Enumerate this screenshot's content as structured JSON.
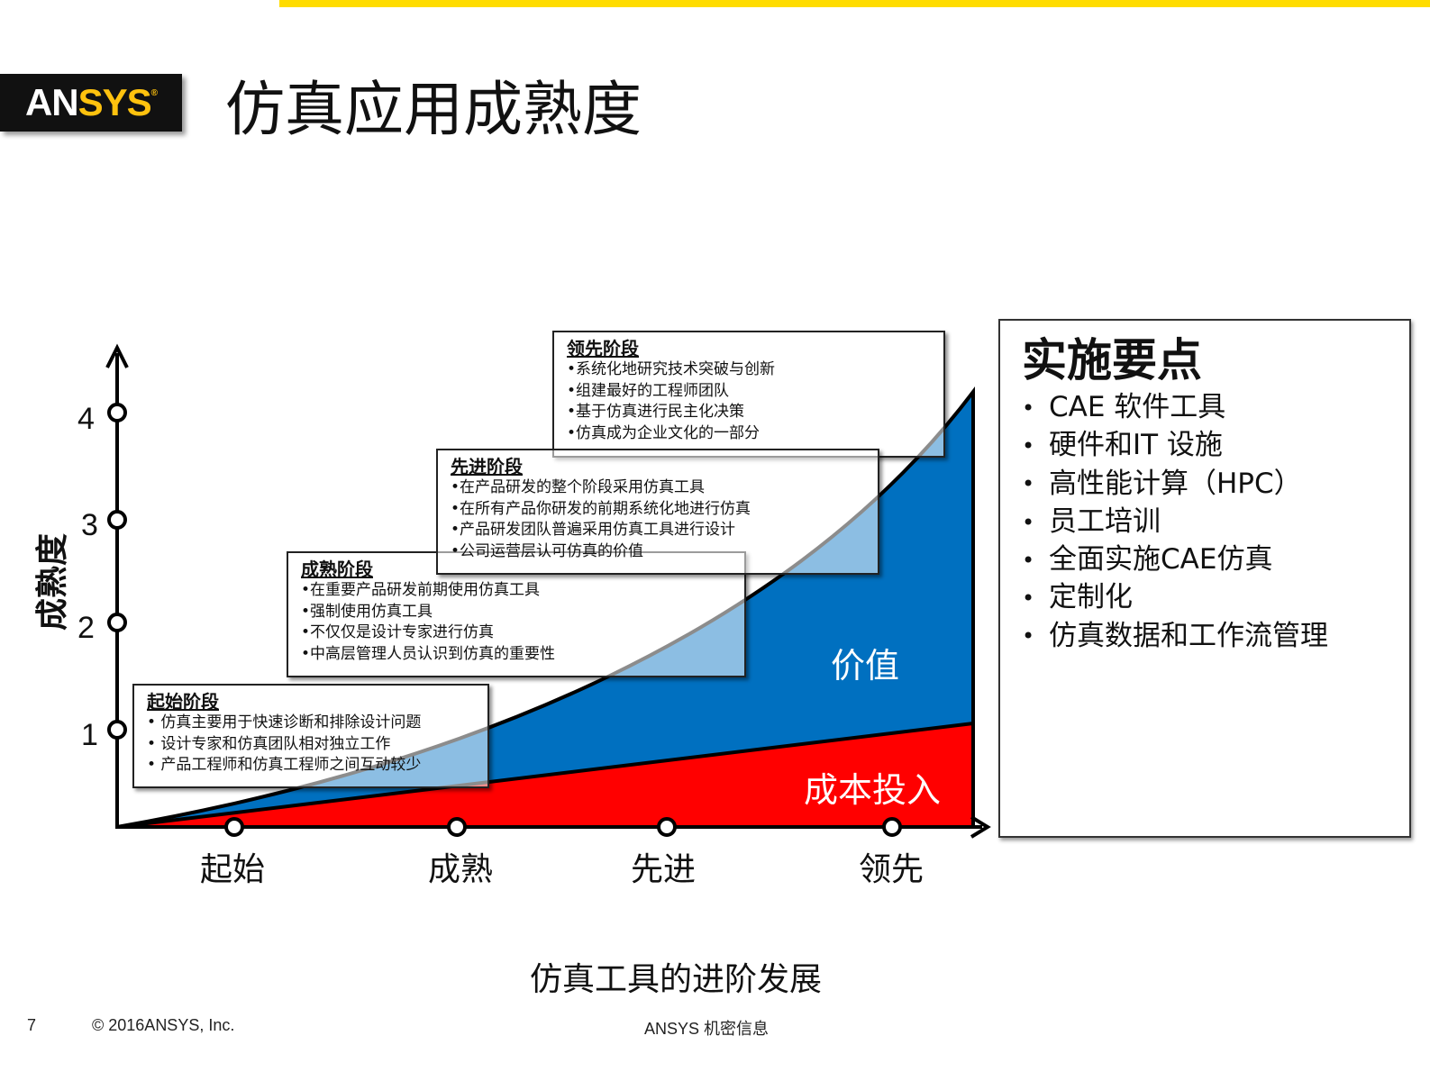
{
  "header": {
    "logo_text_white": "AN",
    "logo_text_yellow": "SYS",
    "logo_reg": "®",
    "title": "仿真应用成熟度"
  },
  "diagram": {
    "y_axis_label": "成熟度",
    "y_ticks": [
      "1",
      "2",
      "3",
      "4"
    ],
    "x_ticks": [
      "起始",
      "成熟",
      "先进",
      "领先"
    ],
    "x_axis_title": "仿真工具的进阶发展",
    "area_labels": {
      "value": "价值",
      "cost": "成本投入"
    },
    "colors": {
      "value": "#0070c0",
      "cost": "#ff0000",
      "overlay": "#9dc3e6",
      "accent": "#ffdc00"
    },
    "stages": [
      {
        "title": "起始阶段",
        "items": [
          "• 仿真主要用于快速诊断和排除设计问题",
          "• 设计专家和仿真团队相对独立工作",
          "• 产品工程师和仿真工程师之间互动较少"
        ]
      },
      {
        "title": "成熟阶段",
        "items": [
          "•在重要产品研发前期使用仿真工具",
          "•强制使用仿真工具",
          "•不仅仅是设计专家进行仿真",
          "•中高层管理人员认识到仿真的重要性"
        ]
      },
      {
        "title": "先进阶段",
        "items": [
          "•在产品研发的整个阶段采用仿真工具",
          "•在所有产品你研发的前期系统化地进行仿真",
          "•产品研发团队普遍采用仿真工具进行设计",
          "•公司运营层认可仿真的价值"
        ]
      },
      {
        "title": "领先阶段",
        "items": [
          "•系统化地研究技术突破与创新",
          "•组建最好的工程师团队",
          "•基于仿真进行民主化决策",
          "•仿真成为企业文化的一部分"
        ]
      }
    ]
  },
  "key_points": {
    "title": "实施要点",
    "items": [
      "CAE 软件工具",
      "硬件和IT 设施",
      "高性能计算（HPC）",
      "员工培训",
      "全面实施CAE仿真",
      "定制化",
      "仿真数据和工作流管理"
    ]
  },
  "footer": {
    "page": "7",
    "copyright": "© 2016ANSYS, Inc.",
    "confidential": "ANSYS 机密信息"
  }
}
